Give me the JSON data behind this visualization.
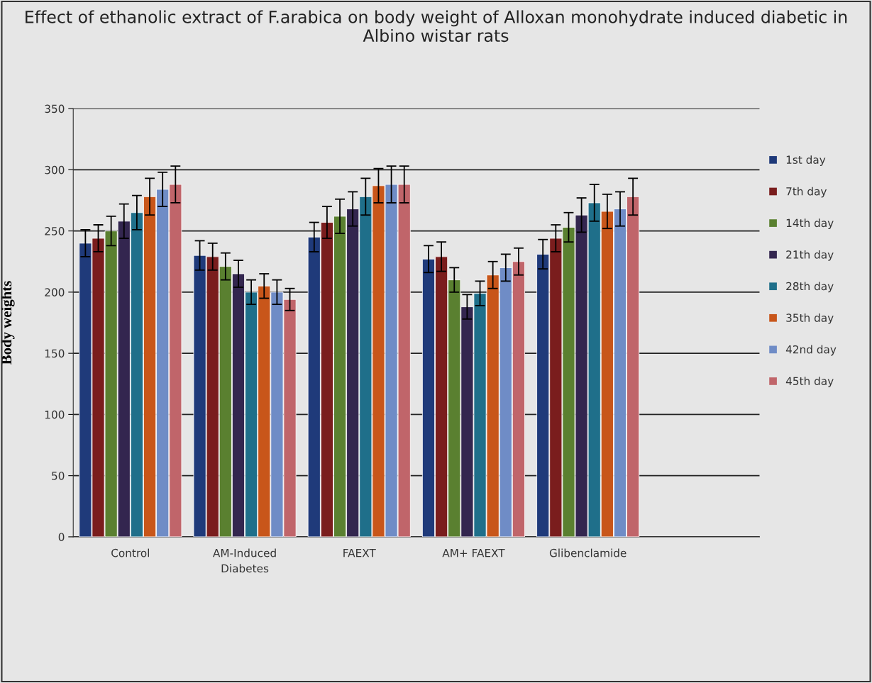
{
  "chart_data": {
    "type": "bar",
    "title": "Effect of ethanolic extract of F.arabica on body weight of Alloxan monohydrate induced diabetic in Albino wistar rats",
    "ylabel": "Body weights",
    "categories": [
      "Control",
      "AM-Induced\nDiabetes",
      "FAEXT",
      "AM+ FAEXT",
      "Glibenclamide",
      null
    ],
    "series": [
      {
        "name": "1st day",
        "color": "#1f3a7a",
        "values": [
          240,
          230,
          245,
          227,
          231,
          null
        ],
        "errors": [
          11,
          12,
          12,
          11,
          12,
          null
        ]
      },
      {
        "name": "7th day",
        "color": "#7a1d1d",
        "values": [
          244,
          229,
          257,
          229,
          244,
          null
        ],
        "errors": [
          11,
          11,
          13,
          12,
          11,
          null
        ]
      },
      {
        "name": "14th day",
        "color": "#5a8030",
        "values": [
          250,
          221,
          262,
          210,
          253,
          null
        ],
        "errors": [
          12,
          11,
          14,
          10,
          12,
          null
        ]
      },
      {
        "name": "21th day",
        "color": "#33264f",
        "values": [
          258,
          215,
          268,
          188,
          263,
          null
        ],
        "errors": [
          14,
          11,
          14,
          10,
          14,
          null
        ]
      },
      {
        "name": "28th day",
        "color": "#1f6f8a",
        "values": [
          265,
          200,
          278,
          199,
          273,
          null
        ],
        "errors": [
          14,
          10,
          15,
          10,
          15,
          null
        ]
      },
      {
        "name": "35th day",
        "color": "#c8561a",
        "values": [
          278,
          205,
          287,
          214,
          266,
          null
        ],
        "errors": [
          15,
          10,
          14,
          11,
          14,
          null
        ]
      },
      {
        "name": "42nd day",
        "color": "#6f8cc6",
        "values": [
          284,
          200,
          288,
          220,
          268,
          null
        ],
        "errors": [
          14,
          10,
          15,
          11,
          14,
          null
        ]
      },
      {
        "name": "45th day",
        "color": "#c0656a",
        "values": [
          288,
          194,
          288,
          225,
          278,
          null
        ],
        "errors": [
          15,
          9,
          15,
          11,
          15,
          null
        ]
      }
    ],
    "ylim": [
      0,
      350
    ],
    "yticks": [
      0,
      50,
      100,
      150,
      200,
      250,
      300,
      350
    ],
    "grid": "y",
    "legend": "right"
  }
}
